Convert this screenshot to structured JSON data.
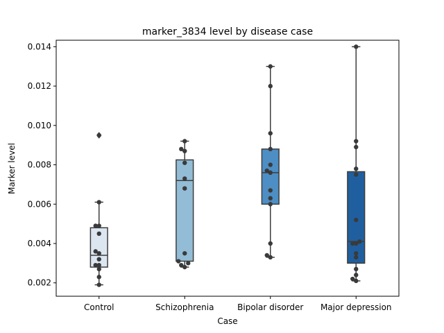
{
  "chart_data": {
    "type": "box",
    "title": "marker_3834 level by disease case",
    "xlabel": "Case",
    "ylabel": "Marker level",
    "ylim": [
      0.00132,
      0.01433
    ],
    "yticks": [
      0.002,
      0.004,
      0.006,
      0.008,
      0.01,
      0.012,
      0.014
    ],
    "ytick_labels": [
      "0.002",
      "0.004",
      "0.006",
      "0.008",
      "0.010",
      "0.012",
      "0.014"
    ],
    "categories": [
      "Control",
      "Schizophrenia",
      "Bipolar disorder",
      "Major depression"
    ],
    "colors": [
      "#dce6f1",
      "#93bcd6",
      "#4d8ec4",
      "#205f9f"
    ],
    "boxes": [
      {
        "q1": 0.0028,
        "median": 0.0034,
        "q3": 0.0048,
        "whisker_low": 0.0019,
        "whisker_high": 0.0061,
        "outliers": [
          0.0095
        ]
      },
      {
        "q1": 0.0031,
        "median": 0.0072,
        "q3": 0.00825,
        "whisker_low": 0.0028,
        "whisker_high": 0.0092,
        "outliers": []
      },
      {
        "q1": 0.006,
        "median": 0.0076,
        "q3": 0.0088,
        "whisker_low": 0.0033,
        "whisker_high": 0.013,
        "outliers": []
      },
      {
        "q1": 0.003,
        "median": 0.0041,
        "q3": 0.00765,
        "whisker_low": 0.0021,
        "whisker_high": 0.014,
        "outliers": []
      }
    ],
    "points": [
      [
        0.0095,
        0.0061,
        0.0049,
        0.0049,
        0.0045,
        0.0036,
        0.0035,
        0.0032,
        0.0029,
        0.0029,
        0.0027,
        0.0023,
        0.0019
      ],
      [
        0.0092,
        0.0088,
        0.0087,
        0.0081,
        0.0073,
        0.0068,
        0.0035,
        0.0031,
        0.003,
        0.0029,
        0.0028
      ],
      [
        0.013,
        0.012,
        0.0096,
        0.0088,
        0.008,
        0.0077,
        0.0076,
        0.0067,
        0.0063,
        0.006,
        0.004,
        0.0034,
        0.0033
      ],
      [
        0.014,
        0.0092,
        0.0089,
        0.0078,
        0.0075,
        0.0052,
        0.0041,
        0.004,
        0.004,
        0.0035,
        0.0033,
        0.0027,
        0.0024,
        0.0022,
        0.0021
      ]
    ]
  }
}
